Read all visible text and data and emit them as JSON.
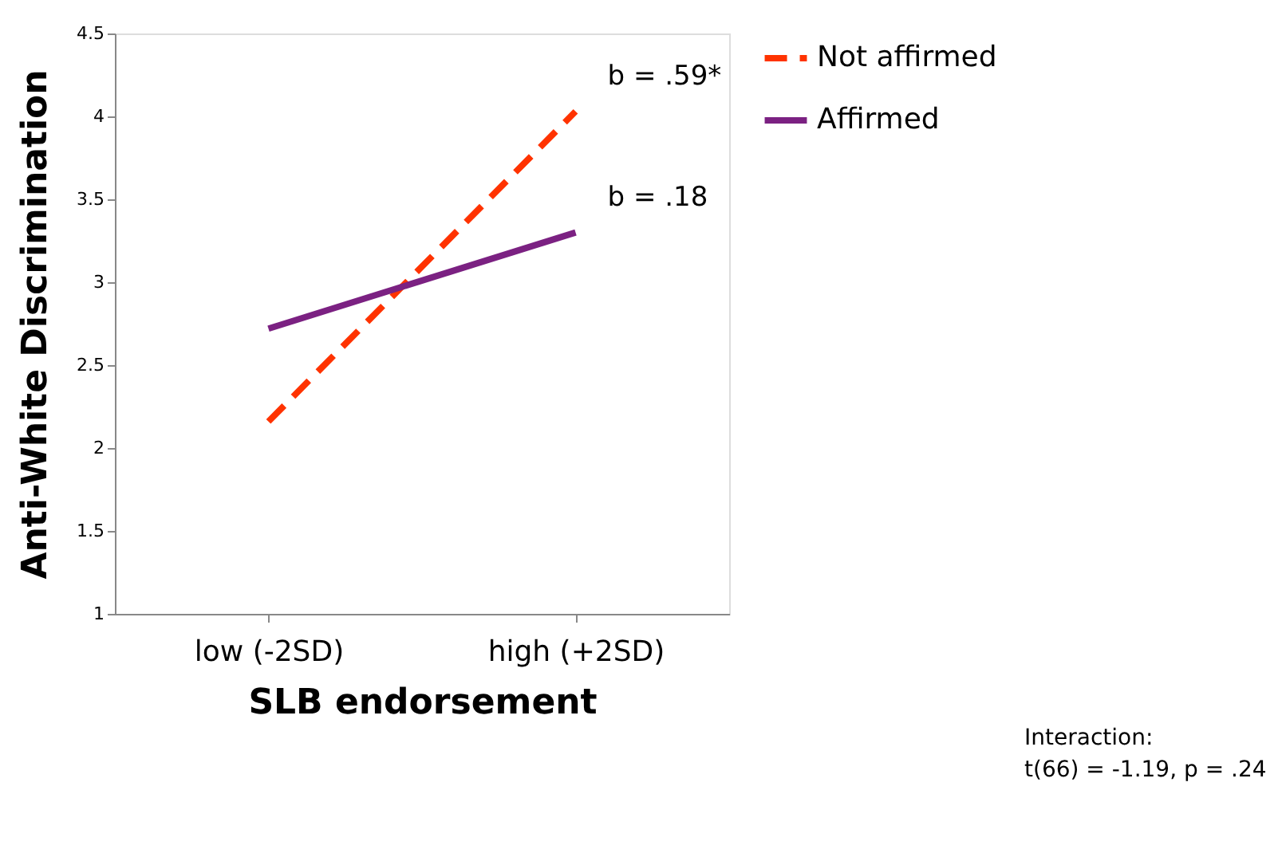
{
  "chart_data": {
    "type": "line",
    "xlabel": "SLB endorsement",
    "ylabel": "Anti-White Discrimination",
    "categories": [
      "low (-2SD)",
      "high (+2SD)"
    ],
    "series": [
      {
        "name": "Not affirmed",
        "color": "#ff3300",
        "values": [
          2.16,
          4.03
        ],
        "line_style": "dashed"
      },
      {
        "name": "Affirmed",
        "color": "#7b2182",
        "values": [
          2.72,
          3.3
        ],
        "line_style": "solid"
      }
    ],
    "ylim": [
      1,
      4.5
    ],
    "yticks": [
      1,
      1.5,
      2,
      2.5,
      3,
      3.5,
      4,
      4.5
    ],
    "grid": false,
    "legend": "right",
    "marker": "none",
    "annotations": [
      {
        "text": "b = .59*",
        "x": "high (+2SD)",
        "y": 4.03
      },
      {
        "text": "b = .18",
        "x": "high (+2SD)",
        "y": 3.3
      },
      "Interaction:\nt(66) = -1.19, p = .24"
    ]
  }
}
